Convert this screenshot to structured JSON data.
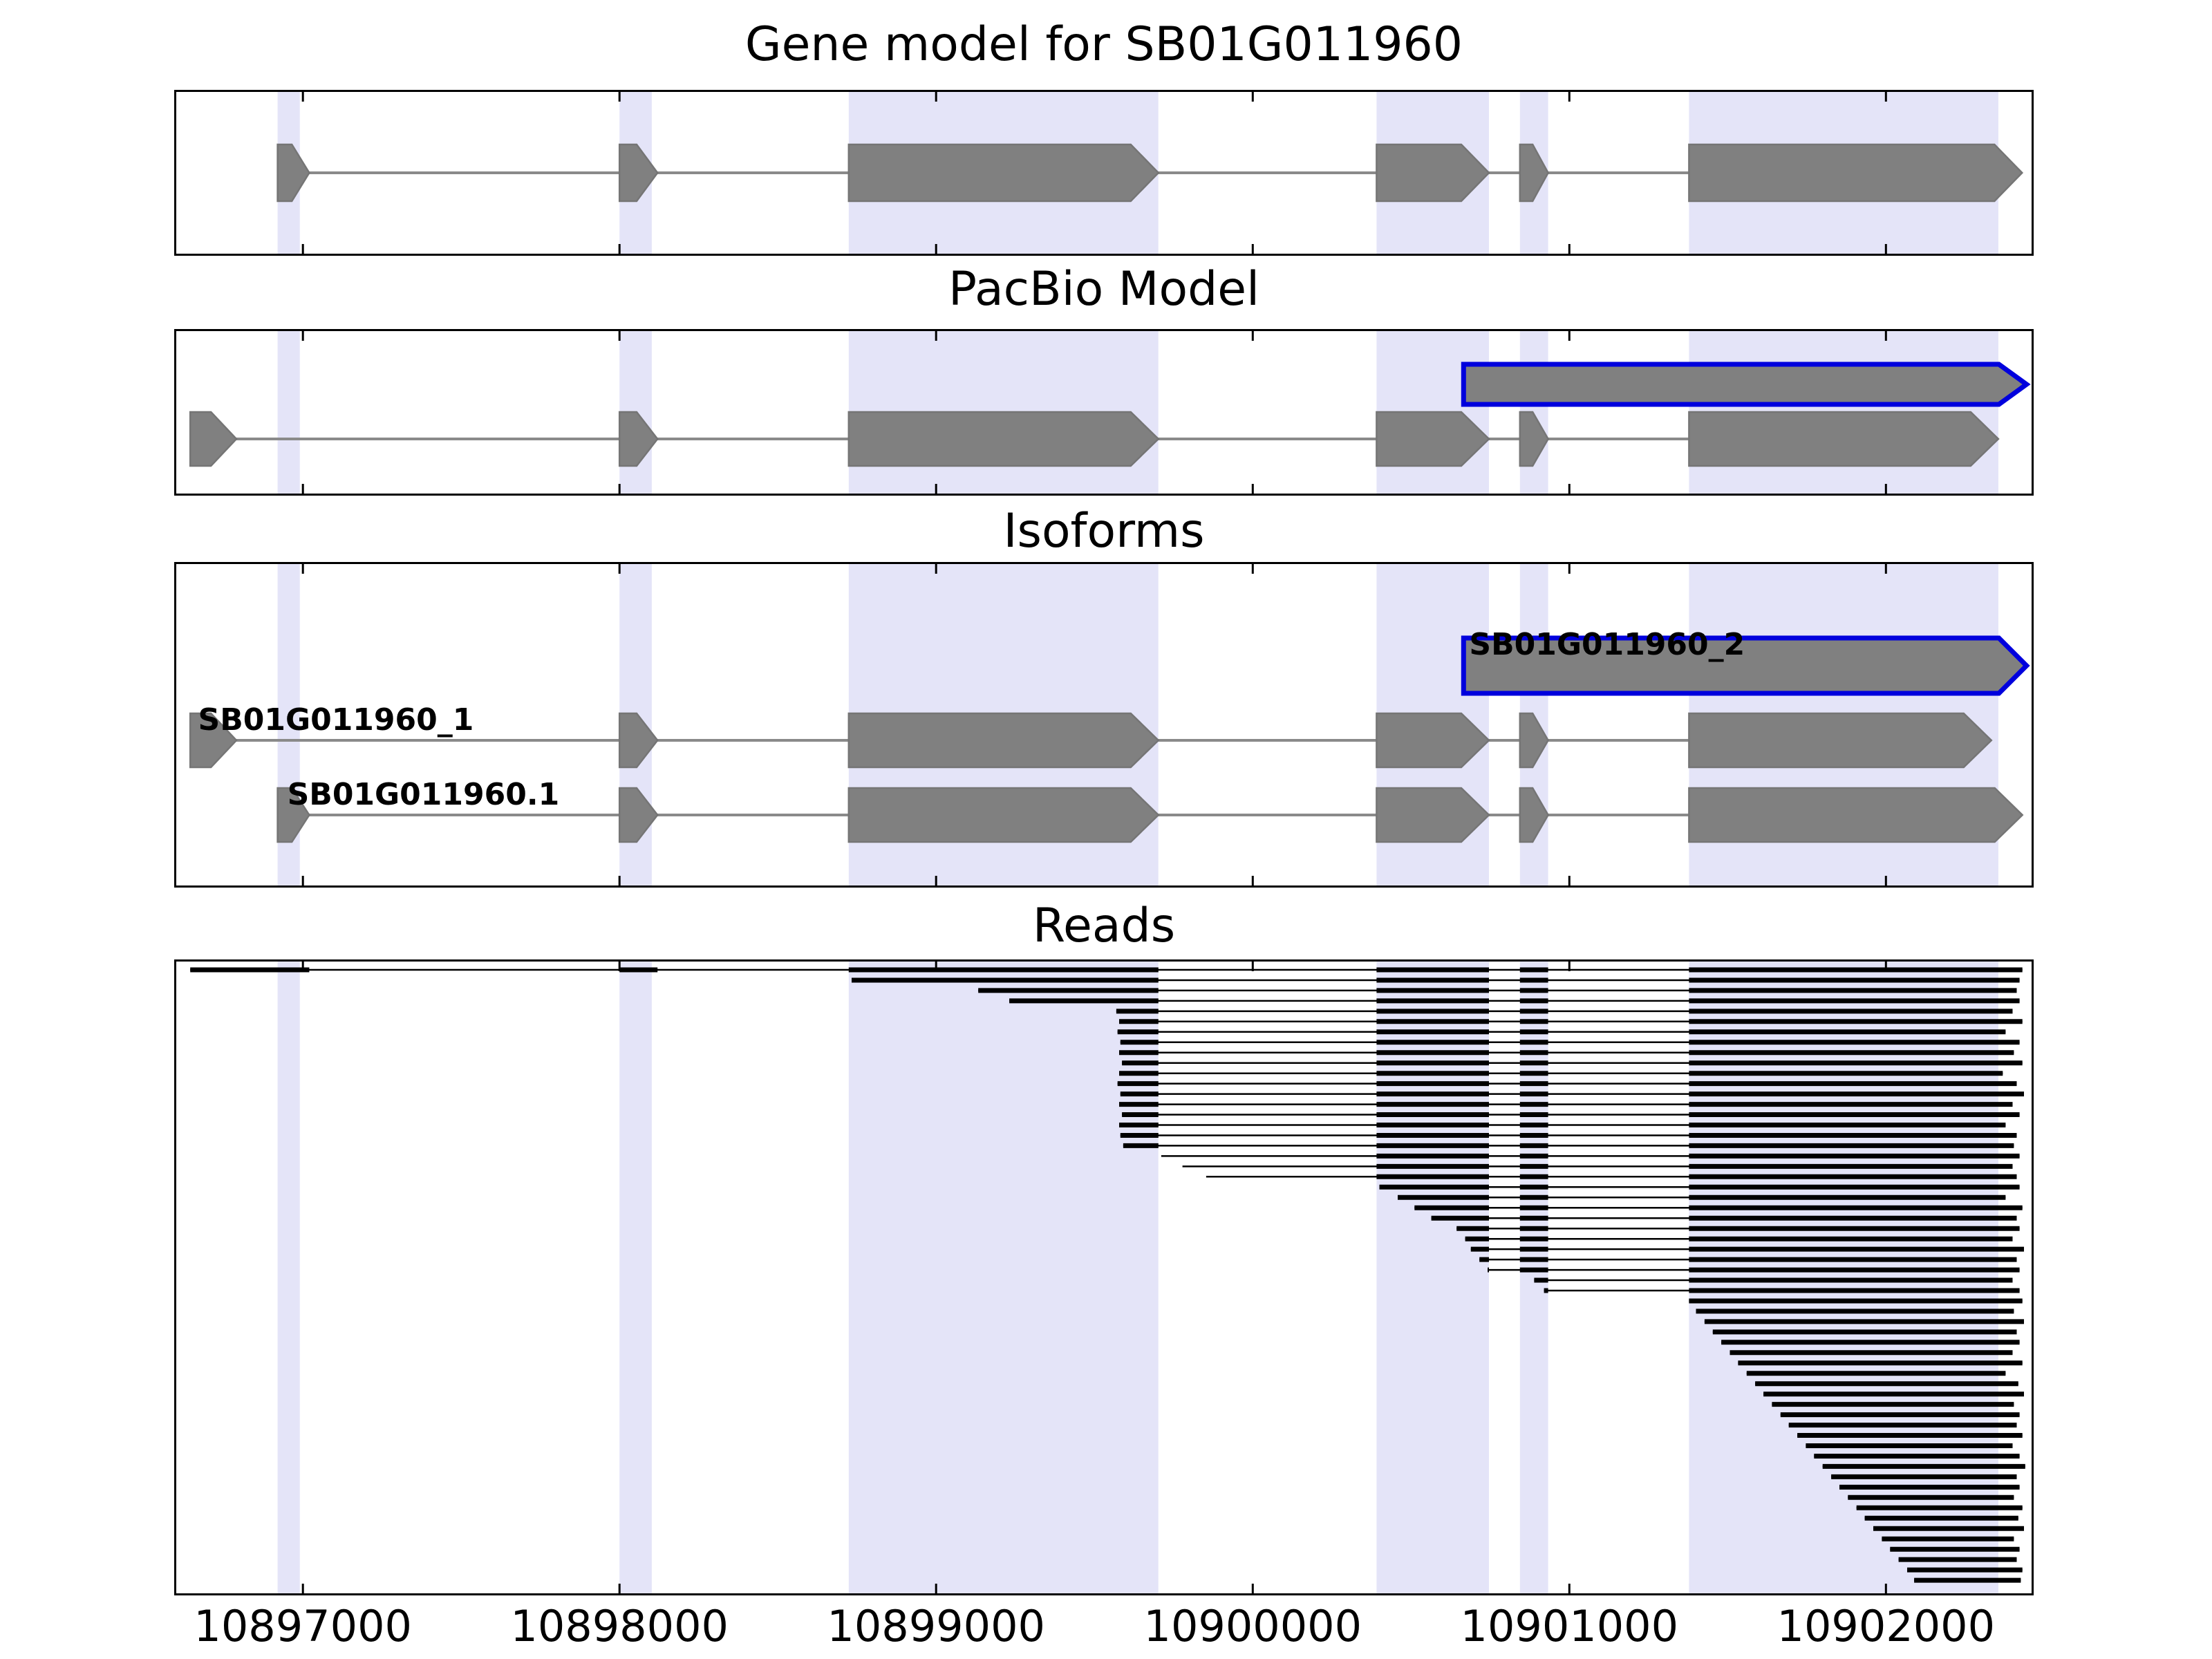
{
  "chart_data": {
    "type": "genome-annotation-tracks",
    "panels": [
      {
        "id": "gene_model",
        "title": "Gene model for SB01G011960"
      },
      {
        "id": "pacbio",
        "title": "PacBio Model"
      },
      {
        "id": "isoforms",
        "title": "Isoforms"
      },
      {
        "id": "reads",
        "title": "Reads"
      }
    ],
    "axis": {
      "xmin": 10896600,
      "xmax": 10902460,
      "ticks": [
        10897000,
        10898000,
        10899000,
        10900000,
        10901000,
        10902000
      ],
      "tick_labels": [
        "10897000",
        "10898000",
        "10899000",
        "10900000",
        "10901000",
        "10902000"
      ]
    },
    "colors": {
      "band": "#e4e4f8",
      "exon_fill": "#808080",
      "exon_edge": "#757575",
      "connector": "#8a8a8a",
      "novel_edge": "#0000dd",
      "read": "#000000"
    },
    "highlight_bands": [
      [
        10896920,
        10896990
      ],
      [
        10898000,
        10898102
      ],
      [
        10898724,
        10899702
      ],
      [
        10900391,
        10900746
      ],
      [
        10900844,
        10900933
      ],
      [
        10901378,
        10902355
      ]
    ],
    "splice_model": [
      [
        10896644,
        10897020
      ],
      [
        10898000,
        10898120
      ],
      [
        10898724,
        10899702
      ],
      [
        10900391,
        10900746
      ],
      [
        10900844,
        10900933
      ],
      [
        10901378,
        10902460
      ]
    ],
    "gene_model_transcripts": [
      {
        "name": null,
        "exons": [
          [
            10896920,
            10897020
          ],
          [
            10898000,
            10898120
          ],
          [
            10898724,
            10899702
          ],
          [
            10900391,
            10900746
          ],
          [
            10900844,
            10900933
          ],
          [
            10901378,
            10902430
          ]
        ]
      }
    ],
    "pacbio_transcripts": [
      {
        "name": null,
        "edge": "blue",
        "exons": [
          [
            10900666,
            10902444
          ]
        ]
      },
      {
        "name": null,
        "exons": [
          [
            10896644,
            10896790
          ],
          [
            10898000,
            10898120
          ],
          [
            10898724,
            10899702
          ],
          [
            10900391,
            10900746
          ],
          [
            10900844,
            10900933
          ],
          [
            10901378,
            10902355
          ]
        ]
      }
    ],
    "isoform_transcripts": [
      {
        "name": "SB01G011960_2",
        "edge": "blue",
        "label_x": 10900675,
        "exons": [
          [
            10900666,
            10902444
          ]
        ]
      },
      {
        "name": "SB01G011960_1",
        "label_x": 10896660,
        "exons": [
          [
            10896644,
            10896790
          ],
          [
            10898000,
            10898120
          ],
          [
            10898724,
            10899702
          ],
          [
            10900391,
            10900746
          ],
          [
            10900844,
            10900933
          ],
          [
            10901378,
            10902333
          ]
        ]
      },
      {
        "name": "SB01G011960.1",
        "label_x": 10896942,
        "exons": [
          [
            10896920,
            10897020
          ],
          [
            10898000,
            10898120
          ],
          [
            10898724,
            10899702
          ],
          [
            10900391,
            10900746
          ],
          [
            10900844,
            10900933
          ],
          [
            10901378,
            10902431
          ]
        ]
      }
    ],
    "reads": [
      [
        10896644,
        10902431
      ],
      [
        10898733,
        10902422
      ],
      [
        10899133,
        10902413
      ],
      [
        10899231,
        10902422
      ],
      [
        10899569,
        10902400
      ],
      [
        10899578,
        10902431
      ],
      [
        10899573,
        10902378
      ],
      [
        10899582,
        10902422
      ],
      [
        10899578,
        10902404
      ],
      [
        10899587,
        10902431
      ],
      [
        10899578,
        10902369
      ],
      [
        10899573,
        10902413
      ],
      [
        10899582,
        10902436
      ],
      [
        10899578,
        10902400
      ],
      [
        10899587,
        10902422
      ],
      [
        10899578,
        10902378
      ],
      [
        10899582,
        10902413
      ],
      [
        10899591,
        10902404
      ],
      [
        10899711,
        10902422
      ],
      [
        10899778,
        10902400
      ],
      [
        10899853,
        10902413
      ],
      [
        10900400,
        10902422
      ],
      [
        10900458,
        10902378
      ],
      [
        10900511,
        10902431
      ],
      [
        10900564,
        10902413
      ],
      [
        10900644,
        10902422
      ],
      [
        10900671,
        10902400
      ],
      [
        10900689,
        10902436
      ],
      [
        10900716,
        10902413
      ],
      [
        10900742,
        10902422
      ],
      [
        10900889,
        10902400
      ],
      [
        10900920,
        10902422
      ],
      [
        10901378,
        10902431
      ],
      [
        10901400,
        10902404
      ],
      [
        10901427,
        10902436
      ],
      [
        10901453,
        10902413
      ],
      [
        10901480,
        10902422
      ],
      [
        10901507,
        10902400
      ],
      [
        10901533,
        10902431
      ],
      [
        10901560,
        10902378
      ],
      [
        10901587,
        10902418
      ],
      [
        10901613,
        10902436
      ],
      [
        10901640,
        10902404
      ],
      [
        10901667,
        10902422
      ],
      [
        10901693,
        10902413
      ],
      [
        10901720,
        10902431
      ],
      [
        10901747,
        10902400
      ],
      [
        10901773,
        10902422
      ],
      [
        10901800,
        10902440
      ],
      [
        10901827,
        10902413
      ],
      [
        10901853,
        10902422
      ],
      [
        10901880,
        10902404
      ],
      [
        10901907,
        10902431
      ],
      [
        10901933,
        10902418
      ],
      [
        10901960,
        10902436
      ],
      [
        10901987,
        10902404
      ],
      [
        10902013,
        10902422
      ],
      [
        10902040,
        10902413
      ],
      [
        10902067,
        10902431
      ],
      [
        10902089,
        10902426
      ]
    ]
  }
}
